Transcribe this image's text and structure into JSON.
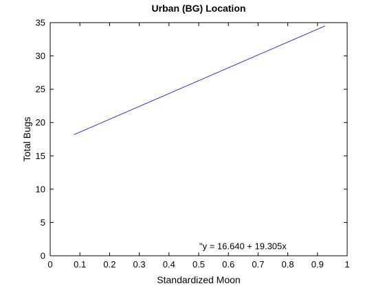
{
  "chart_data": {
    "type": "line",
    "title": "Urban (BG) Location",
    "xlabel": "Standardized Moon",
    "ylabel": "Total Bugs",
    "xlim": [
      0,
      1
    ],
    "ylim": [
      0,
      35
    ],
    "xticks": [
      0,
      0.1,
      0.2,
      0.3,
      0.4,
      0.5,
      0.6,
      0.7,
      0.8,
      0.9,
      1
    ],
    "xtick_labels": [
      "0",
      "0.1",
      "0.2",
      "0.3",
      "0.4",
      "0.5",
      "0.6",
      "0.7",
      "0.8",
      "0.9",
      "1"
    ],
    "yticks": [
      0,
      5,
      10,
      15,
      20,
      25,
      30,
      35
    ],
    "ytick_labels": [
      "0",
      "5",
      "10",
      "15",
      "20",
      "25",
      "30",
      "35"
    ],
    "grid": false,
    "series": [
      {
        "color": "#0000ff",
        "x": [
          0.08,
          0.925
        ],
        "y": [
          18.18,
          34.5
        ]
      }
    ],
    "annotation": {
      "text": "\"y = 16.640 + 19.305x",
      "x": 0.5,
      "y": 1.0
    }
  }
}
